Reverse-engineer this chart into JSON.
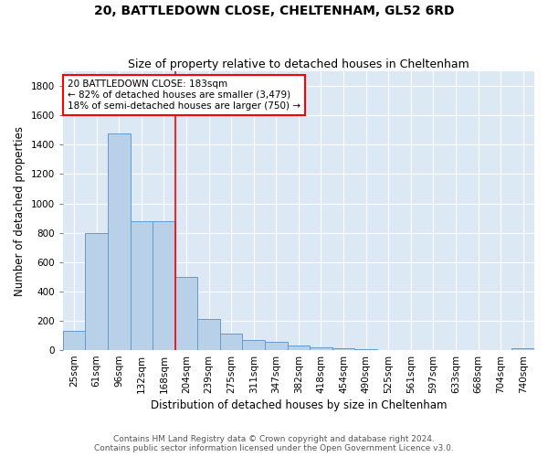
{
  "title": "20, BATTLEDOWN CLOSE, CHELTENHAM, GL52 6RD",
  "subtitle": "Size of property relative to detached houses in Cheltenham",
  "xlabel": "Distribution of detached houses by size in Cheltenham",
  "ylabel": "Number of detached properties",
  "categories": [
    "25sqm",
    "61sqm",
    "96sqm",
    "132sqm",
    "168sqm",
    "204sqm",
    "239sqm",
    "275sqm",
    "311sqm",
    "347sqm",
    "382sqm",
    "418sqm",
    "454sqm",
    "490sqm",
    "525sqm",
    "561sqm",
    "597sqm",
    "633sqm",
    "668sqm",
    "704sqm",
    "740sqm"
  ],
  "values": [
    130,
    800,
    1480,
    880,
    880,
    500,
    210,
    110,
    70,
    55,
    30,
    20,
    10,
    5,
    3,
    2,
    1,
    1,
    1,
    1,
    15
  ],
  "bar_color": "#b8d0e8",
  "bar_edge_color": "#6699cc",
  "background_color": "#dde8f5",
  "grid_color": "#ffffff",
  "vline_position": 4.5,
  "vline_color": "red",
  "annotation_line1": "20 BATTLEDOWN CLOSE: 183sqm",
  "annotation_line2": "← 82% of detached houses are smaller (3,479)",
  "annotation_line3": "18% of semi-detached houses are larger (750) →",
  "annotation_box_color": "white",
  "annotation_box_edge": "red",
  "footer_line1": "Contains HM Land Registry data © Crown copyright and database right 2024.",
  "footer_line2": "Contains public sector information licensed under the Open Government Licence v3.0.",
  "ylim": [
    0,
    1900
  ],
  "yticks": [
    0,
    200,
    400,
    600,
    800,
    1000,
    1200,
    1400,
    1600,
    1800
  ],
  "title_fontsize": 10,
  "subtitle_fontsize": 9,
  "xlabel_fontsize": 8.5,
  "ylabel_fontsize": 8.5,
  "tick_fontsize": 7.5,
  "annotation_fontsize": 7.5,
  "footer_fontsize": 6.5
}
